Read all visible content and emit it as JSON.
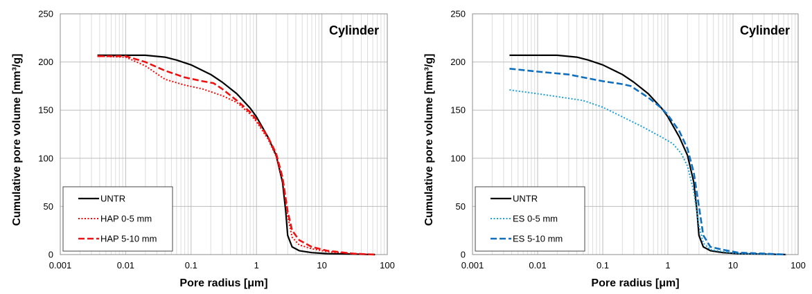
{
  "chart_data": [
    {
      "type": "line",
      "title": "Cylinder",
      "xlabel": "Pore radius [μm]",
      "ylabel": "Cumulative pore volume [mm³/g]",
      "xscale": "log",
      "xlim": [
        0.001,
        100
      ],
      "ylim": [
        0,
        250
      ],
      "x_ticks": [
        "0.001",
        "0.01",
        "0.1",
        "1",
        "10",
        "100"
      ],
      "y_ticks": [
        "0",
        "50",
        "100",
        "150",
        "200",
        "250"
      ],
      "grid": "vertical minor gridlines and horizontal major gridlines",
      "legend": "bottom-left",
      "series": [
        {
          "name": "UNTR",
          "color": "#000000",
          "style": "solid",
          "points": [
            [
              0.0037,
              207
            ],
            [
              0.01,
              207
            ],
            [
              0.02,
              207
            ],
            [
              0.04,
              205
            ],
            [
              0.06,
              202
            ],
            [
              0.1,
              197
            ],
            [
              0.2,
              187
            ],
            [
              0.3,
              179
            ],
            [
              0.5,
              167
            ],
            [
              0.8,
              152
            ],
            [
              1.0,
              143
            ],
            [
              1.5,
              122
            ],
            [
              2.0,
              103
            ],
            [
              2.5,
              75
            ],
            [
              2.8,
              45
            ],
            [
              3.0,
              20
            ],
            [
              3.5,
              8
            ],
            [
              4.5,
              4
            ],
            [
              7,
              2
            ],
            [
              12,
              1
            ],
            [
              30,
              0.5
            ],
            [
              65,
              0
            ]
          ]
        },
        {
          "name": "HAP 0-5 mm",
          "color": "#ff0000",
          "style": "dotted",
          "points": [
            [
              0.0037,
              206
            ],
            [
              0.01,
              205
            ],
            [
              0.02,
              196
            ],
            [
              0.04,
              182
            ],
            [
              0.08,
              176
            ],
            [
              0.15,
              172
            ],
            [
              0.3,
              165
            ],
            [
              0.5,
              158
            ],
            [
              0.8,
              146
            ],
            [
              1.0,
              138
            ],
            [
              1.5,
              120
            ],
            [
              2.0,
              102
            ],
            [
              2.5,
              78
            ],
            [
              3.0,
              40
            ],
            [
              3.5,
              18
            ],
            [
              4.5,
              10
            ],
            [
              7,
              6
            ],
            [
              12,
              3
            ],
            [
              30,
              1
            ],
            [
              65,
              0
            ]
          ]
        },
        {
          "name": "HAP 5-10 mm",
          "color": "#ee1111",
          "style": "dashed",
          "points": [
            [
              0.0037,
              206
            ],
            [
              0.01,
              206
            ],
            [
              0.02,
              200
            ],
            [
              0.04,
              191
            ],
            [
              0.08,
              184
            ],
            [
              0.15,
              180
            ],
            [
              0.22,
              178
            ],
            [
              0.3,
              172
            ],
            [
              0.5,
              160
            ],
            [
              0.8,
              148
            ],
            [
              1.0,
              140
            ],
            [
              1.5,
              122
            ],
            [
              2.0,
              105
            ],
            [
              2.5,
              80
            ],
            [
              3.0,
              45
            ],
            [
              3.5,
              25
            ],
            [
              4.5,
              15
            ],
            [
              7,
              8
            ],
            [
              12,
              4
            ],
            [
              30,
              1
            ],
            [
              65,
              0
            ]
          ]
        }
      ]
    },
    {
      "type": "line",
      "title": "Cylinder",
      "xlabel": "Pore radius [μm]",
      "ylabel": "Cumulative pore volume [mm³/g]",
      "xscale": "log",
      "xlim": [
        0.001,
        100
      ],
      "ylim": [
        0,
        250
      ],
      "x_ticks": [
        "0.001",
        "0.01",
        "0.1",
        "1",
        "10",
        "100"
      ],
      "y_ticks": [
        "0",
        "50",
        "100",
        "150",
        "200",
        "250"
      ],
      "grid": "vertical minor gridlines and horizontal major gridlines",
      "legend": "bottom-left",
      "series": [
        {
          "name": "UNTR",
          "color": "#000000",
          "style": "solid",
          "points": [
            [
              0.0037,
              207
            ],
            [
              0.01,
              207
            ],
            [
              0.02,
              207
            ],
            [
              0.04,
              205
            ],
            [
              0.06,
              202
            ],
            [
              0.1,
              197
            ],
            [
              0.2,
              187
            ],
            [
              0.3,
              179
            ],
            [
              0.5,
              167
            ],
            [
              0.8,
              152
            ],
            [
              1.0,
              143
            ],
            [
              1.5,
              122
            ],
            [
              2.0,
              103
            ],
            [
              2.5,
              75
            ],
            [
              2.8,
              45
            ],
            [
              3.0,
              20
            ],
            [
              3.5,
              8
            ],
            [
              4.5,
              4
            ],
            [
              7,
              2
            ],
            [
              12,
              1
            ],
            [
              30,
              0.5
            ],
            [
              65,
              0
            ]
          ]
        },
        {
          "name": "ES 0-5 mm",
          "color": "#1a9fd6",
          "style": "dotted",
          "points": [
            [
              0.0037,
              171
            ],
            [
              0.01,
              167
            ],
            [
              0.02,
              164
            ],
            [
              0.05,
              160
            ],
            [
              0.1,
              153
            ],
            [
              0.2,
              143
            ],
            [
              0.4,
              133
            ],
            [
              0.8,
              122
            ],
            [
              1.2,
              115
            ],
            [
              1.6,
              105
            ],
            [
              2.0,
              92
            ],
            [
              2.5,
              65
            ],
            [
              3.0,
              30
            ],
            [
              3.5,
              12
            ],
            [
              4.5,
              5
            ],
            [
              7,
              3
            ],
            [
              12,
              1
            ],
            [
              30,
              0.5
            ],
            [
              65,
              0
            ]
          ]
        },
        {
          "name": "ES 5-10 mm",
          "color": "#0f6fbf",
          "style": "dashed",
          "points": [
            [
              0.0037,
              193
            ],
            [
              0.01,
              190
            ],
            [
              0.03,
              187
            ],
            [
              0.06,
              183
            ],
            [
              0.1,
              180
            ],
            [
              0.2,
              177
            ],
            [
              0.27,
              175
            ],
            [
              0.35,
              170
            ],
            [
              0.5,
              163
            ],
            [
              0.8,
              152
            ],
            [
              1.0,
              145
            ],
            [
              1.5,
              128
            ],
            [
              2.0,
              110
            ],
            [
              2.5,
              85
            ],
            [
              3.0,
              50
            ],
            [
              3.5,
              20
            ],
            [
              4.5,
              8
            ],
            [
              7,
              5
            ],
            [
              12,
              2
            ],
            [
              30,
              1
            ],
            [
              65,
              0
            ]
          ]
        }
      ]
    }
  ]
}
